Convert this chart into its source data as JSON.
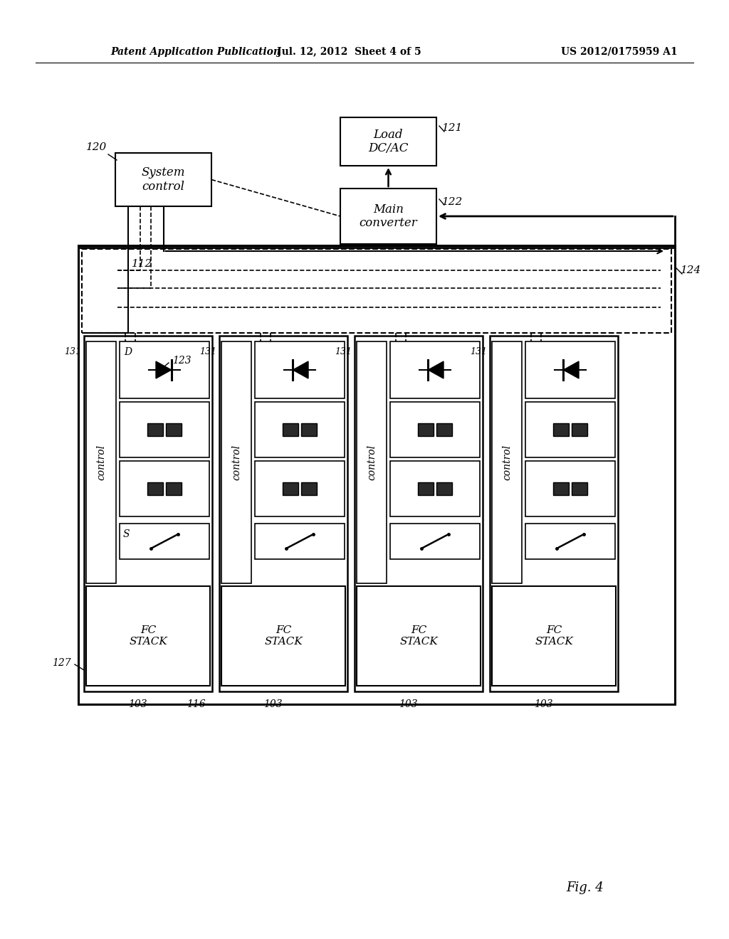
{
  "bg_color": "#ffffff",
  "header_left": "Patent Application Publication",
  "header_mid": "Jul. 12, 2012  Sheet 4 of 5",
  "header_right": "US 2012/0175959 A1",
  "fig_label": "Fig. 4",
  "label_120": "120",
  "label_121": "121",
  "label_122": "122",
  "label_123": "123",
  "label_124": "124",
  "label_112": "112",
  "label_116": "116",
  "label_127": "127",
  "label_131": "131",
  "label_103": "103",
  "label_D": "D",
  "label_S": "S",
  "box_system_control": "System\ncontrol",
  "box_load": "Load\nDC/AC",
  "box_main_converter": "Main\nconverter",
  "box_control": "control",
  "box_fc_stack": "FC\nSTACK"
}
